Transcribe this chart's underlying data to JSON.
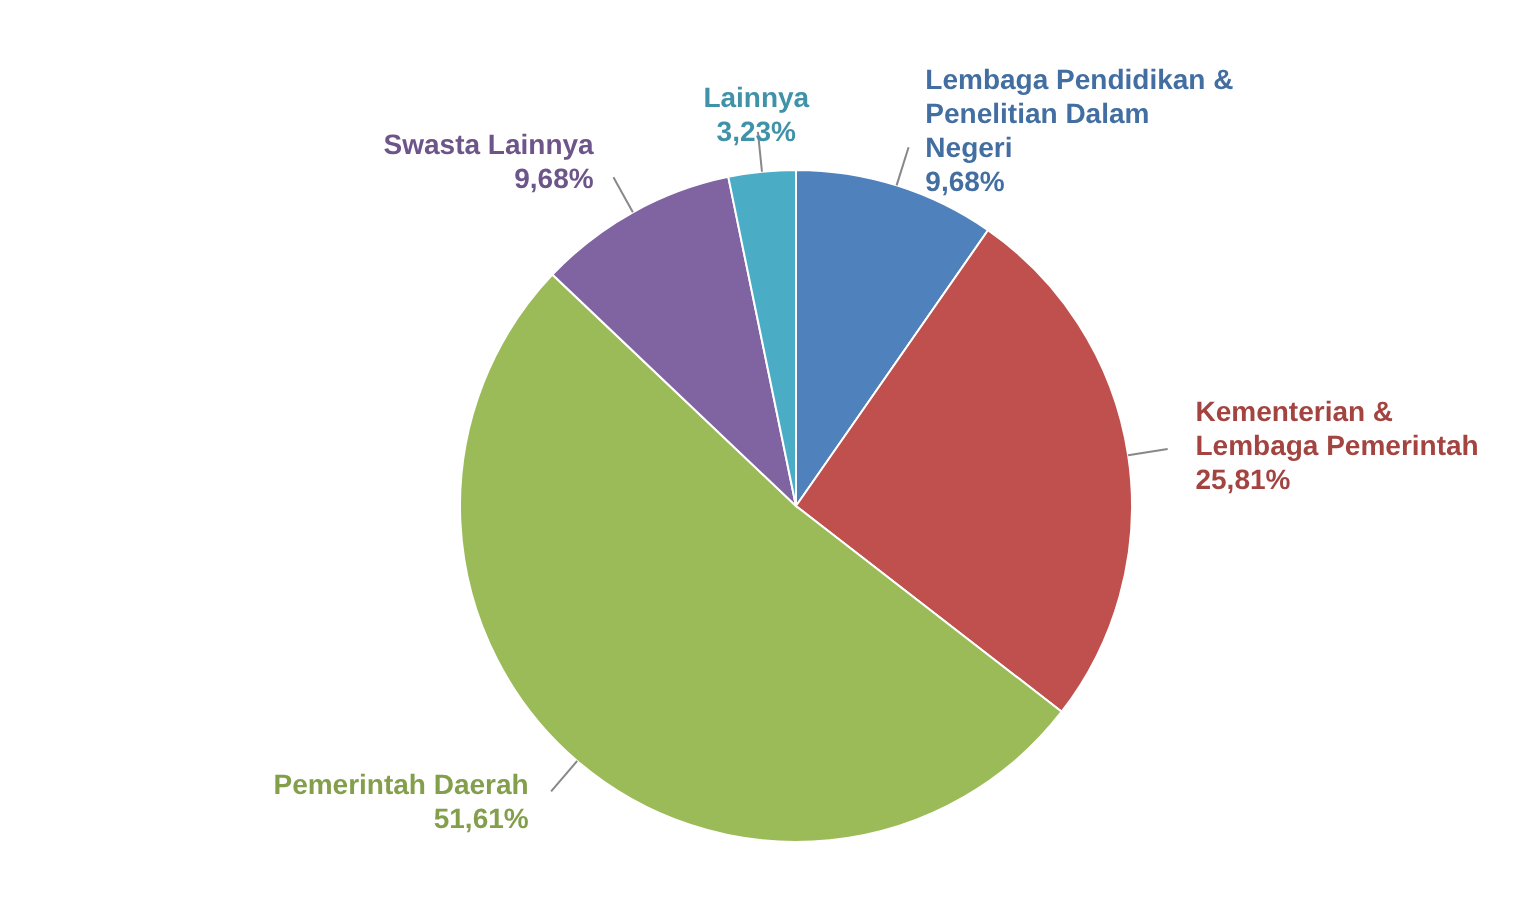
{
  "chart_data": {
    "type": "pie",
    "categories": [
      "Lembaga Pendidikan & Penelitian Dalam Negeri",
      "Kementerian & Lembaga Pemerintah",
      "Pemerintah Daerah",
      "Swasta Lainnya",
      "Lainnya"
    ],
    "values": [
      9.68,
      25.81,
      51.61,
      9.68,
      3.23
    ],
    "value_labels": [
      "9,68%",
      "25,81%",
      "51,61%",
      "9,68%",
      "3,23%"
    ],
    "colors": [
      "#4f81bd",
      "#c0504d",
      "#9bbb59",
      "#8064a2",
      "#4bacc6"
    ]
  }
}
